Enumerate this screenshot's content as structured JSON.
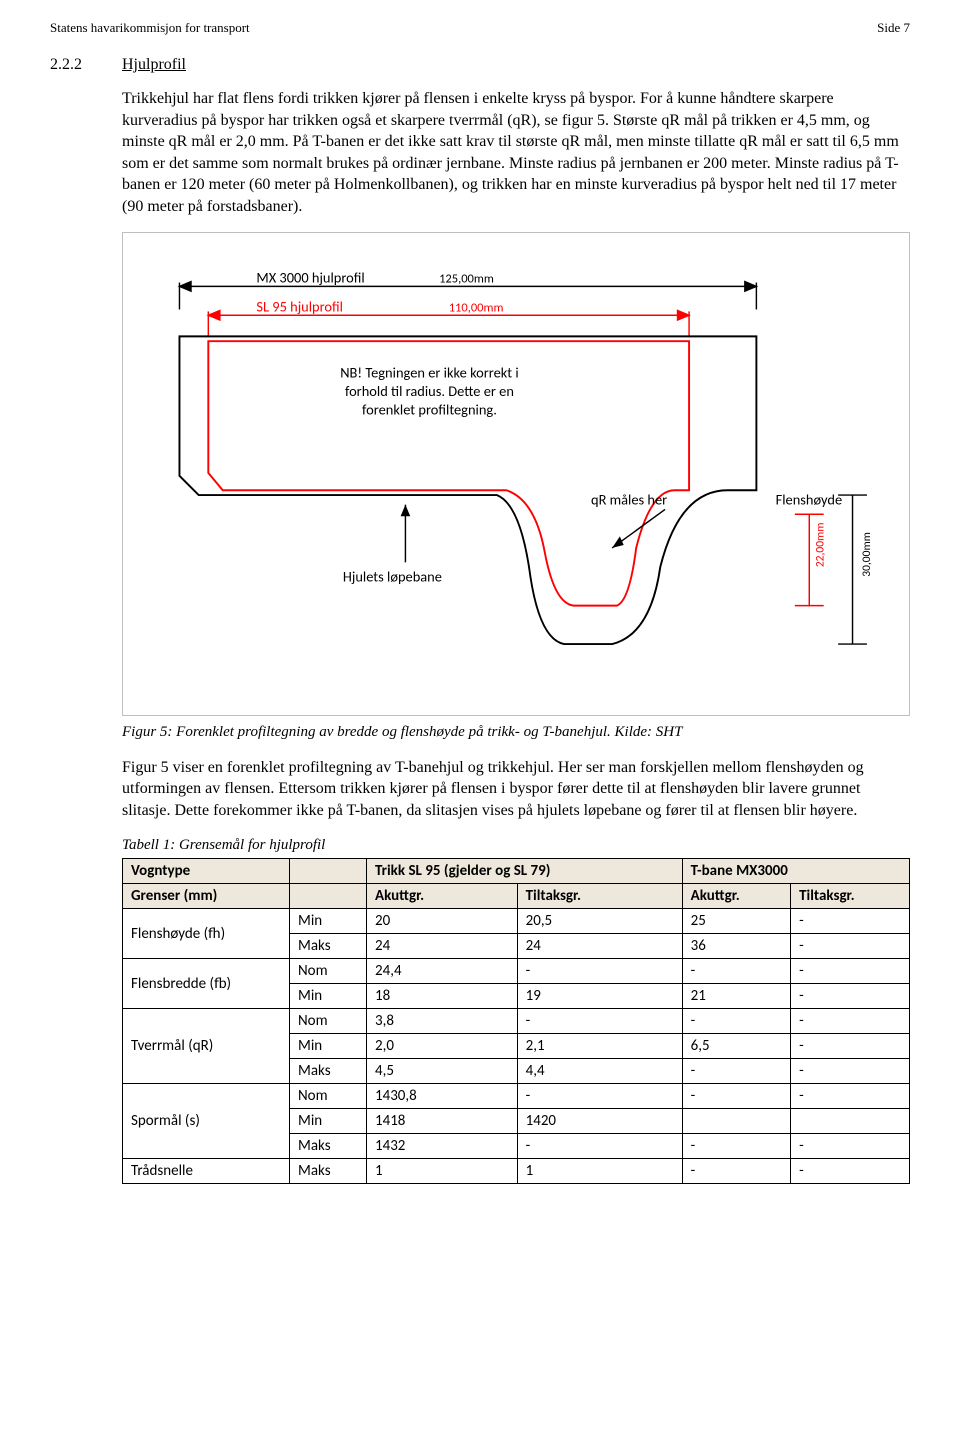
{
  "header": {
    "left": "Statens havarikommisjon for transport",
    "right": "Side 7"
  },
  "section": {
    "num": "2.2.2",
    "title": "Hjulprofil"
  },
  "paragraphs": {
    "p1": "Trikkehjul har flat flens fordi trikken kjører på flensen i enkelte kryss på byspor. For å kunne håndtere skarpere kurveradius på byspor har trikken også et skarpere tverrmål (qR), se figur 5. Største qR mål på trikken er 4,5 mm, og minste qR mål er 2,0 mm. På T-banen er det ikke satt krav til største qR mål, men minste tillatte qR mål er satt til 6,5 mm som er det samme som normalt brukes på ordinær jernbane. Minste radius på jernbanen er 200 meter. Minste radius på T-banen er 120 meter (60 meter på Holmenkollbanen), og trikken har en minste kurveradius på byspor helt ned til 17 meter (90 meter på forstadsbaner).",
    "p2": "Figur 5 viser en forenklet profiltegning av T-banehjul og trikkehjul. Her ser man forskjellen mellom flenshøyden og utformingen av flensen. Ettersom trikken kjører på flensen i byspor fører dette til at flenshøyden blir lavere grunnet slitasje. Dette forekommer ikke på T-banen, da slitasjen vises på hjulets løpebane og fører til at flensen blir høyere."
  },
  "figure": {
    "caption": "Figur 5: Forenklet profiltegning av bredde og flenshøyde på trikk- og T-banehjul. Kilde: SHT",
    "labels": {
      "mx": "MX 3000 hjulprofil",
      "mx_dim": "125,00mm",
      "sl": "SL 95 hjulprofil",
      "sl_dim": "110,00mm",
      "note": "NB! Tegningen er ikke korrekt i forhold til radius. Dette er en forenklet profiltegning.",
      "qr": "qR måles her",
      "flenshoyde": "Flenshøyde",
      "lopebane": "Hjulets løpebane",
      "h_red": "22,00mm",
      "h_black": "30,00mm"
    },
    "colors": {
      "red": "#ff0000",
      "black": "#000000",
      "text": "#000000"
    },
    "font": {
      "label_size": 15,
      "dim_size": 13,
      "note_size": 15
    }
  },
  "table": {
    "caption": "Tabell 1: Grensemål for hjulprofil",
    "header_row1": [
      "Vogntype",
      "",
      "Trikk SL 95 (gjelder og SL 79)",
      "T-bane MX3000"
    ],
    "header_row2": [
      "Grenser (mm)",
      "",
      "Akuttgr.",
      "Tiltaksgr.",
      "Akuttgr.",
      "Tiltaksgr."
    ],
    "groups": [
      {
        "label": "Flenshøyde (fh)",
        "rows": [
          [
            "Min",
            "20",
            "20,5",
            "25",
            "-"
          ],
          [
            "Maks",
            "24",
            "24",
            "36",
            "-"
          ]
        ]
      },
      {
        "label": "Flensbredde (fb)",
        "rows": [
          [
            "Nom",
            "24,4",
            "-",
            "-",
            "-"
          ],
          [
            "Min",
            "18",
            "19",
            "21",
            "-"
          ]
        ]
      },
      {
        "label": "Tverrmål (qR)",
        "rows": [
          [
            "Nom",
            "3,8",
            "-",
            "-",
            "-"
          ],
          [
            "Min",
            "2,0",
            "2,1",
            "6,5",
            "-"
          ],
          [
            "Maks",
            "4,5",
            "4,4",
            "-",
            "-"
          ]
        ]
      },
      {
        "label": "Spormål (s)",
        "rows": [
          [
            "Nom",
            "1430,8",
            "-",
            "-",
            "-"
          ],
          [
            "Min",
            "1418",
            "1420",
            "",
            ""
          ],
          [
            "Maks",
            "1432",
            "-",
            "-",
            "-"
          ]
        ]
      },
      {
        "label": "Trådsnelle",
        "rows": [
          [
            "Maks",
            "1",
            "1",
            "-",
            "-"
          ]
        ]
      }
    ]
  }
}
